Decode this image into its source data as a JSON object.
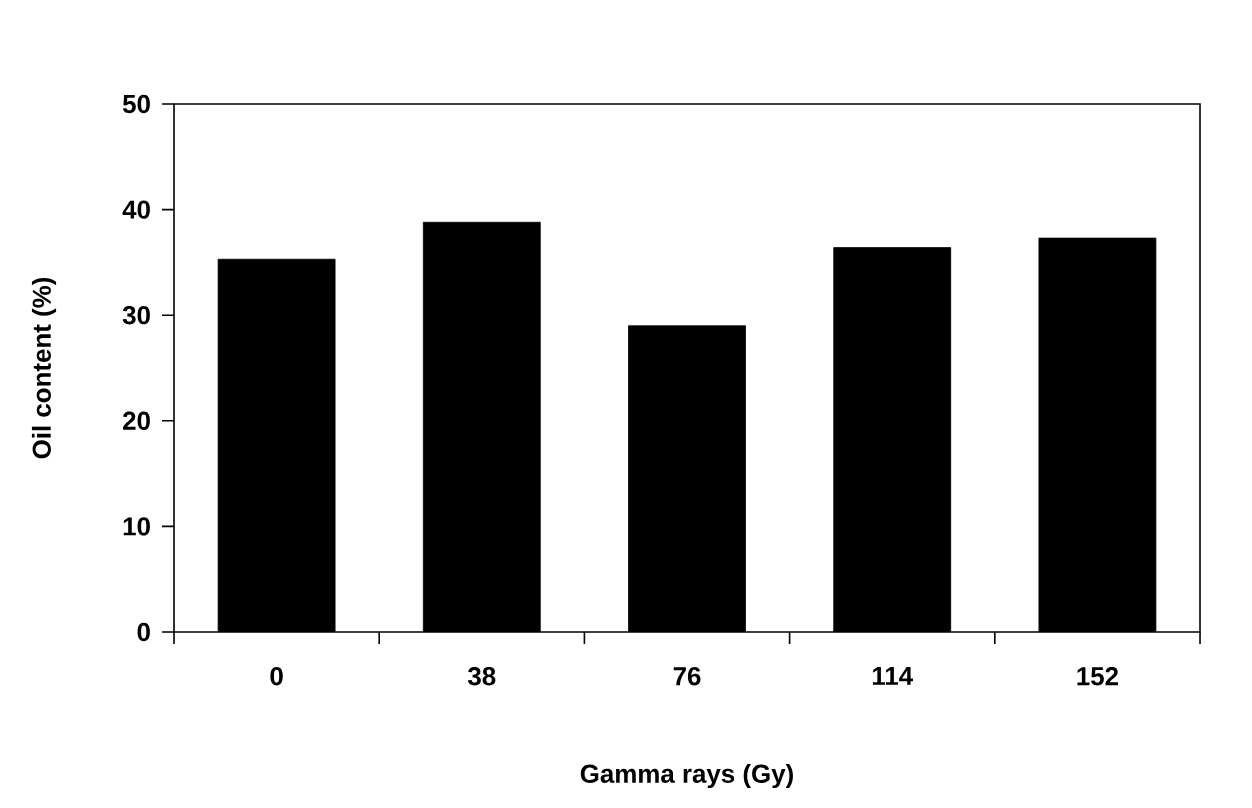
{
  "chart_data": {
    "type": "bar",
    "xlabel": "Gamma rays (Gy)",
    "ylabel": "Oil content (%)",
    "categories": [
      "0",
      "38",
      "76",
      "114",
      "152"
    ],
    "values": [
      35.3,
      38.8,
      29.0,
      36.4,
      37.3
    ],
    "color": "#000000",
    "ylim": [
      0,
      50
    ],
    "yticks": [
      0,
      10,
      20,
      30,
      40,
      50
    ]
  }
}
